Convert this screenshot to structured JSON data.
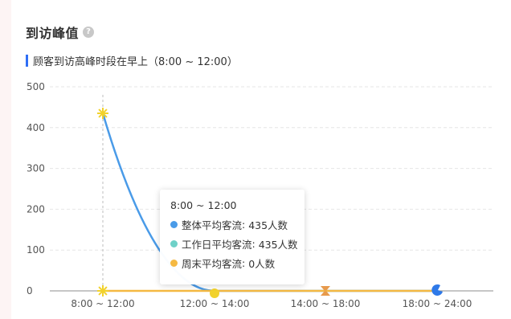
{
  "header": {
    "title": "到访峰值",
    "help_icon": "question-circle-icon"
  },
  "summary": {
    "text": "顾客到访高峰时段在早上（8:00 ~ 12:00）"
  },
  "colors": {
    "overall": "#4a9be8",
    "weekday": "#6fd1c8",
    "weekend": "#f5b942",
    "accent_bar": "#2f6ef5",
    "marker_yellow": "#f2d22c",
    "marker_orange": "#e79a4c",
    "marker_blue": "#2e79e8"
  },
  "tooltip": {
    "title": "8:00 ~ 12:00",
    "rows": [
      {
        "name": "整体平均客流",
        "value": "435人数",
        "color": "#4a9be8"
      },
      {
        "name": "工作日平均客流",
        "value": "435人数",
        "color": "#6fd1c8"
      },
      {
        "name": "周末平均客流",
        "value": "0人数",
        "color": "#f5b942"
      }
    ]
  },
  "chart_data": {
    "type": "line",
    "categories": [
      "8:00 ~ 12:00",
      "12:00 ~ 14:00",
      "14:00 ~ 18:00",
      "18:00 ~ 24:00"
    ],
    "yticks": [
      0,
      100,
      200,
      300,
      400,
      500
    ],
    "ylim": [
      0,
      500
    ],
    "grid": true,
    "series": [
      {
        "name": "整体平均客流",
        "values": [
          435,
          0,
          0,
          0
        ],
        "color": "#4a9be8"
      },
      {
        "name": "工作日平均客流",
        "values": [
          435,
          0,
          0,
          0
        ],
        "color": "#6fd1c8"
      },
      {
        "name": "周末平均客流",
        "values": [
          0,
          0,
          0,
          0
        ],
        "color": "#f5b942"
      }
    ]
  }
}
